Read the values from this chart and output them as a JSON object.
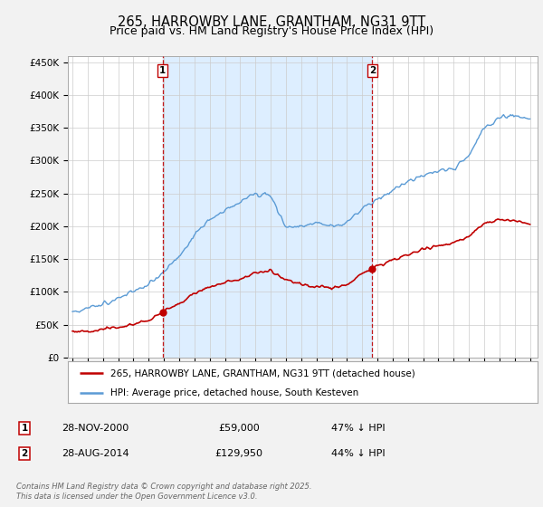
{
  "title": "265, HARROWBY LANE, GRANTHAM, NG31 9TT",
  "subtitle": "Price paid vs. HM Land Registry's House Price Index (HPI)",
  "ylim": [
    0,
    460000
  ],
  "yticks": [
    0,
    50000,
    100000,
    150000,
    200000,
    250000,
    300000,
    350000,
    400000,
    450000
  ],
  "sale1_date": "28-NOV-2000",
  "sale1_price": 59000,
  "sale1_label": "47% ↓ HPI",
  "sale2_date": "28-AUG-2014",
  "sale2_price": 129950,
  "sale2_label": "44% ↓ HPI",
  "sale1_x": 2000.91,
  "sale2_x": 2014.66,
  "hpi_color": "#5b9bd5",
  "sale_color": "#c00000",
  "vline_color": "#c00000",
  "shade_color": "#ddeeff",
  "background_color": "#f2f2f2",
  "plot_bg_color": "#ffffff",
  "legend_label1": "265, HARROWBY LANE, GRANTHAM, NG31 9TT (detached house)",
  "legend_label2": "HPI: Average price, detached house, South Kesteven",
  "footer": "Contains HM Land Registry data © Crown copyright and database right 2025.\nThis data is licensed under the Open Government Licence v3.0.",
  "title_fontsize": 10.5,
  "subtitle_fontsize": 9,
  "axis_fontsize": 7.5,
  "legend_fontsize": 7.5
}
